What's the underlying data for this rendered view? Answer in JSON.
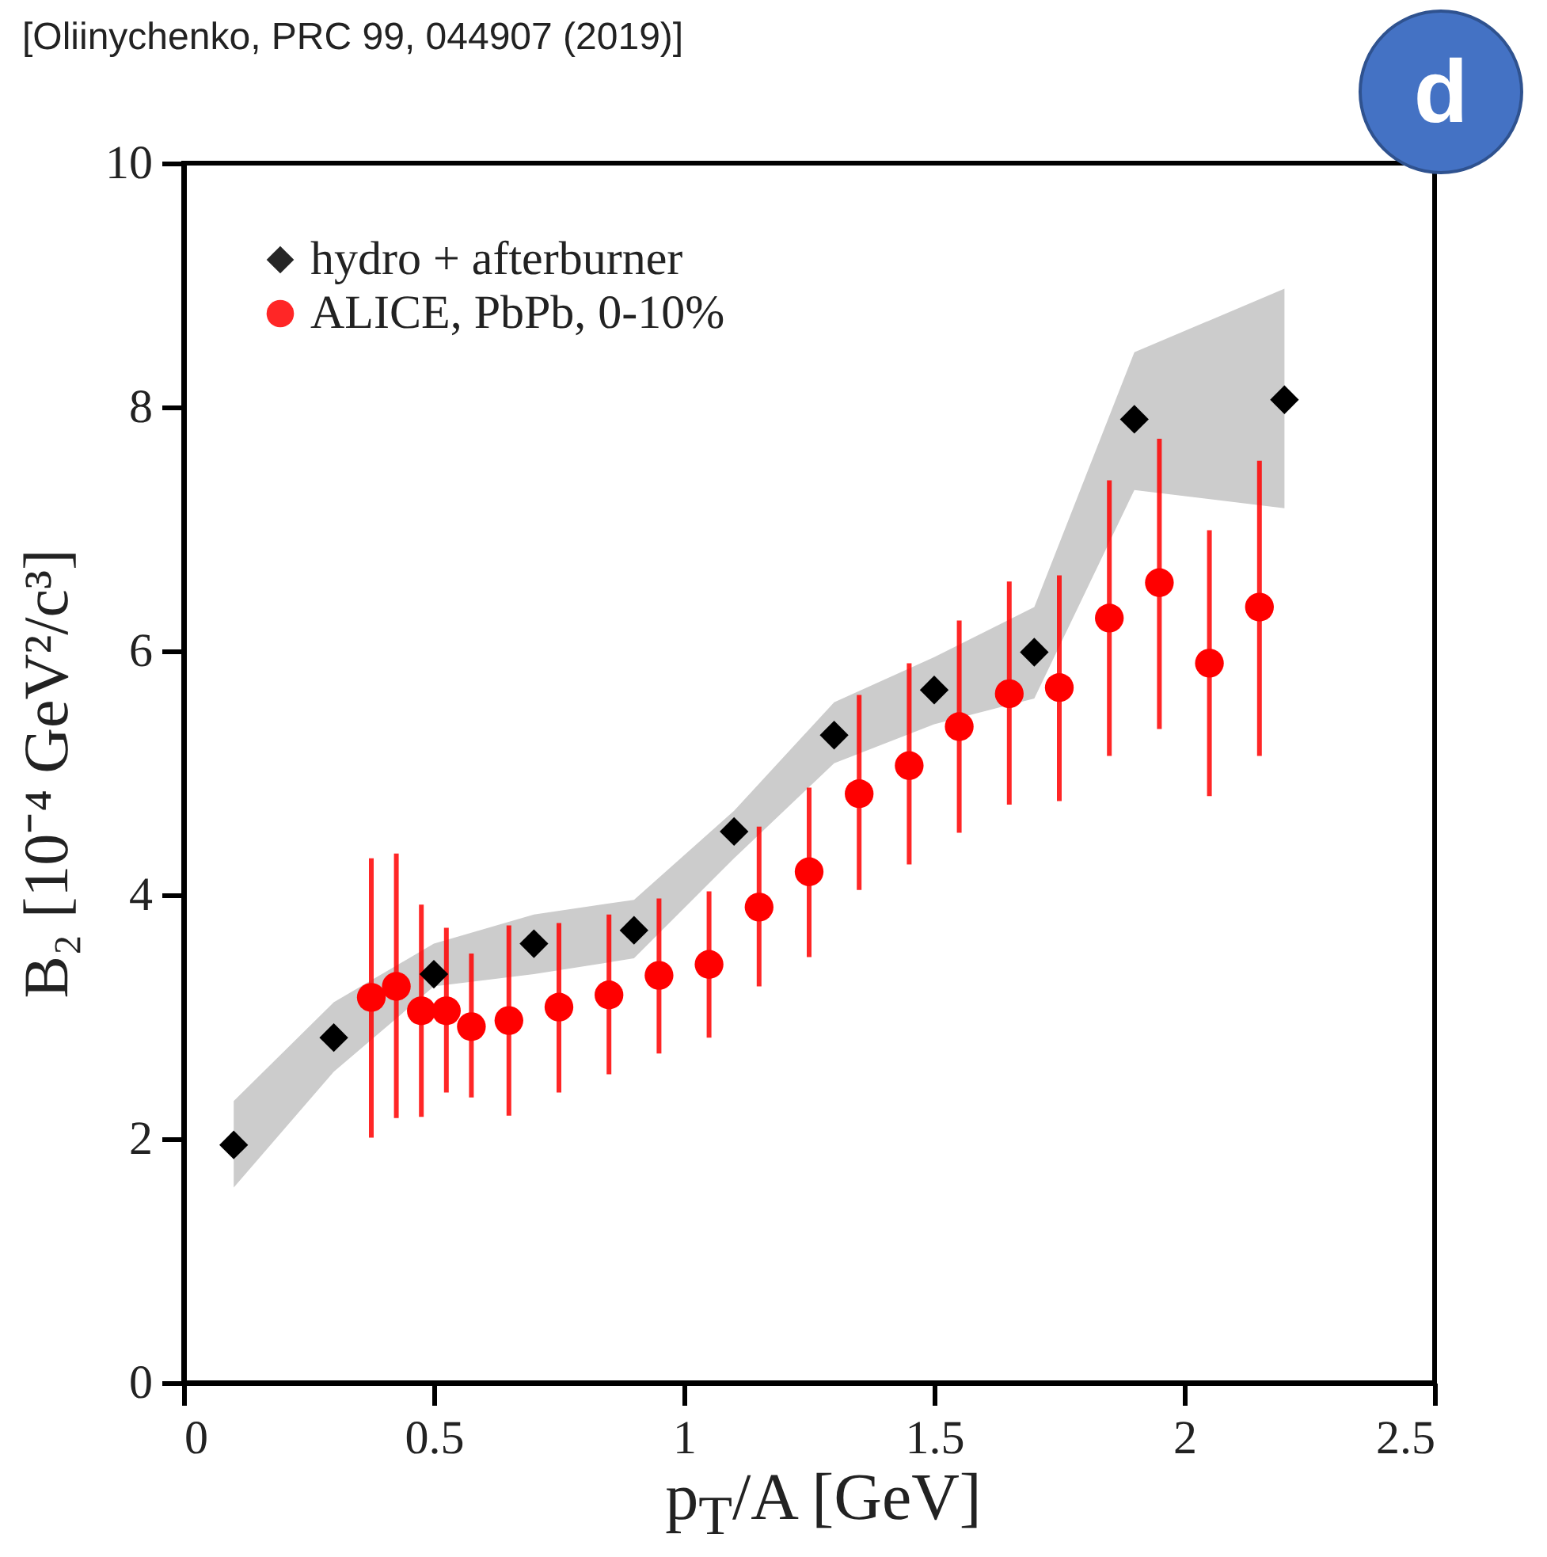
{
  "chart_data": {
    "type": "scatter",
    "annotations": [
      "[Oliinychenko, PRC 99, 044907 (2019)]",
      "d"
    ],
    "xlabel": "p$_{T}$/A [GeV]",
    "ylabel": "B₂ [10⁻⁴ GeV²/c³]",
    "xlim": [
      0,
      2.5
    ],
    "xticks": [
      0,
      0.5,
      1,
      1.5,
      2,
      2.5
    ],
    "ylim": [
      0,
      10
    ],
    "yticks": [
      0,
      2,
      4,
      6,
      8,
      10
    ],
    "legend": "top left",
    "series": [
      {
        "name": "hydro + afterburner",
        "color": "#000000",
        "marker": "diamond",
        "x": [
          0.1,
          0.3,
          0.5,
          0.7,
          0.9,
          1.1,
          1.3,
          1.5,
          1.7,
          1.9,
          2.2
        ],
        "values": [
          1.95,
          2.83,
          3.35,
          3.6,
          3.71,
          4.52,
          5.31,
          5.68,
          5.99,
          7.9,
          8.06
        ],
        "lower": [
          1.6,
          2.55,
          3.25,
          3.35,
          3.48,
          4.3,
          5.08,
          5.4,
          5.61,
          7.32,
          7.17
        ],
        "upper": [
          2.31,
          3.12,
          3.6,
          3.84,
          3.96,
          4.69,
          5.58,
          5.95,
          6.36,
          8.45,
          8.97
        ]
      },
      {
        "name": "ALICE, PbPb, 0-10%",
        "color": "#ff0000",
        "marker": "circle",
        "x": [
          0.375,
          0.425,
          0.475,
          0.525,
          0.575,
          0.65,
          0.75,
          0.85,
          0.95,
          1.05,
          1.15,
          1.25,
          1.35,
          1.45,
          1.55,
          1.65,
          1.75,
          1.85,
          1.95,
          2.05,
          2.15
        ],
        "values": [
          3.16,
          3.25,
          3.05,
          3.05,
          2.92,
          2.97,
          3.08,
          3.18,
          3.34,
          3.43,
          3.9,
          4.19,
          4.83,
          5.06,
          5.38,
          5.65,
          5.7,
          6.27,
          6.56,
          5.9,
          6.36
        ],
        "errors": [
          [
            2.01,
            4.3
          ],
          [
            2.17,
            4.34
          ],
          [
            2.18,
            3.92
          ],
          [
            2.38,
            3.73
          ],
          [
            2.34,
            3.52
          ],
          [
            2.19,
            3.75
          ],
          [
            2.38,
            3.77
          ],
          [
            2.53,
            3.84
          ],
          [
            2.7,
            3.97
          ],
          [
            2.83,
            4.03
          ],
          [
            3.25,
            4.56
          ],
          [
            3.49,
            4.88
          ],
          [
            4.04,
            5.64
          ],
          [
            4.25,
            5.9
          ],
          [
            4.51,
            6.25
          ],
          [
            4.74,
            6.57
          ],
          [
            4.77,
            6.62
          ],
          [
            5.14,
            7.4
          ],
          [
            5.36,
            7.74
          ],
          [
            4.81,
            6.99
          ],
          [
            5.14,
            7.56
          ]
        ]
      }
    ]
  }
}
